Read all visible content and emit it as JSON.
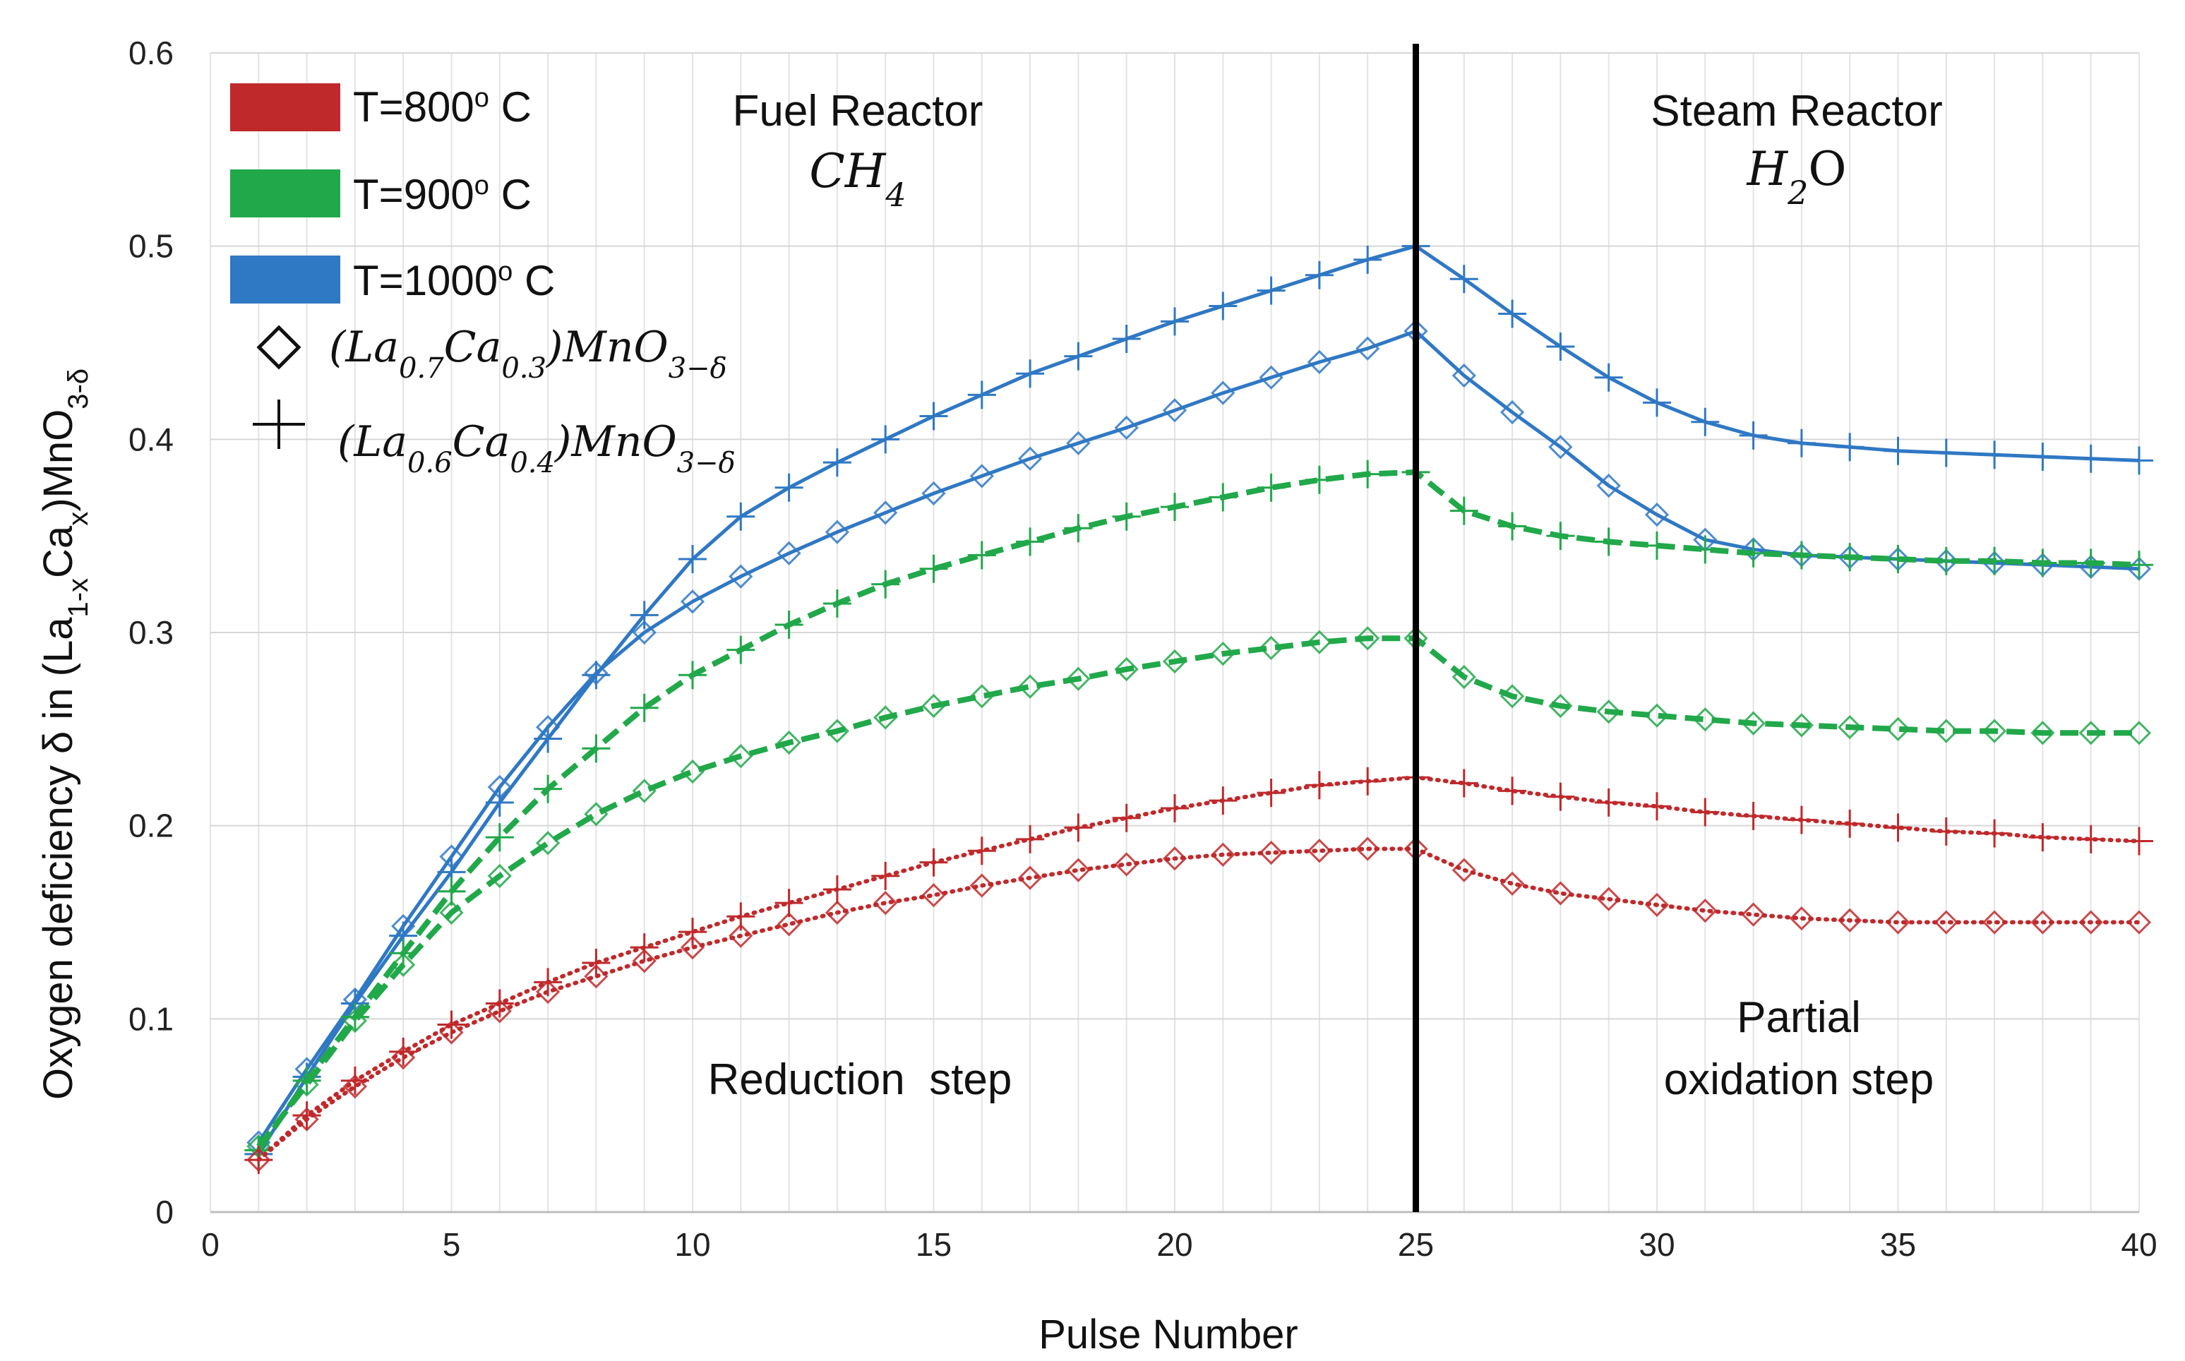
{
  "chart_data": {
    "type": "line",
    "title": "",
    "xlabel": "Pulse Number",
    "ylabel": {
      "prefix": "Oxygen deficiency δ in (La",
      "sub1": "1-x",
      "mid": "Ca",
      "sub2": "x",
      "suffix": ")MnO",
      "sub3": "3-δ"
    },
    "xlim": [
      0,
      40
    ],
    "ylim": [
      0,
      0.6
    ],
    "xticks": [
      "0",
      "5",
      "10",
      "15",
      "20",
      "25",
      "30",
      "35",
      "40"
    ],
    "yticks": [
      "0",
      "0.1",
      "0.2",
      "0.3",
      "0.4",
      "0.5",
      "0.6"
    ],
    "grid": true,
    "divider_x": 25,
    "colors": {
      "t800": "#c0292b",
      "t900": "#21a84a",
      "t1000": "#2f78c4",
      "divider": "#000000"
    },
    "annotations": {
      "fuel_reactor": {
        "title": "Fuel Reactor",
        "formula": "CH",
        "sub": "4"
      },
      "steam_reactor": {
        "title": "Steam Reactor",
        "formula": "H",
        "sub": "2",
        "tail": "O"
      },
      "reduction": "Reduction  step",
      "partial_line1": "Partial",
      "partial_line2": "oxidation step"
    },
    "legend": {
      "t800": {
        "label": "T=800",
        "sup": "o",
        "unit": " C"
      },
      "t900": {
        "label": "T=900",
        "sup": "o",
        "unit": " C"
      },
      "t1000": {
        "label": "T=1000",
        "sup": "o",
        "unit": " C"
      },
      "m03": {
        "open": "(La",
        "s1": "0.7",
        "mid": "Ca",
        "s2": "0.3",
        "close": ")MnO",
        "s3": "3−δ"
      },
      "m04": {
        "open": "(La",
        "s1": "0.6",
        "mid": "Ca",
        "s2": "0.4",
        "close": ")MnO",
        "s3": "3−δ"
      }
    },
    "x": [
      1,
      2,
      3,
      4,
      5,
      6,
      7,
      8,
      9,
      10,
      11,
      12,
      13,
      14,
      15,
      16,
      17,
      18,
      19,
      20,
      21,
      22,
      23,
      24,
      25,
      26,
      27,
      28,
      29,
      30,
      31,
      32,
      33,
      34,
      35,
      36,
      37,
      38,
      39,
      40
    ],
    "series": [
      {
        "name": "T=1000 C (La0.6Ca0.4)MnO3-δ",
        "color": "t1000",
        "style": "solid",
        "marker": "plus",
        "values": [
          0.03,
          0.07,
          0.108,
          0.143,
          0.176,
          0.212,
          0.245,
          0.278,
          0.309,
          0.338,
          0.36,
          0.375,
          0.388,
          0.4,
          0.412,
          0.423,
          0.434,
          0.443,
          0.452,
          0.461,
          0.469,
          0.477,
          0.485,
          0.493,
          0.5,
          0.483,
          0.465,
          0.448,
          0.432,
          0.419,
          0.409,
          0.402,
          0.398,
          0.396,
          0.394,
          0.393,
          0.392,
          0.391,
          0.39,
          0.389
        ]
      },
      {
        "name": "T=1000 C (La0.7Ca0.3)MnO3-δ",
        "color": "t1000",
        "style": "solid",
        "marker": "diamond",
        "values": [
          0.036,
          0.074,
          0.11,
          0.148,
          0.184,
          0.22,
          0.251,
          0.279,
          0.3,
          0.316,
          0.329,
          0.341,
          0.352,
          0.362,
          0.372,
          0.381,
          0.39,
          0.398,
          0.406,
          0.415,
          0.424,
          0.432,
          0.44,
          0.447,
          0.456,
          0.433,
          0.414,
          0.396,
          0.376,
          0.361,
          0.348,
          0.343,
          0.34,
          0.339,
          0.338,
          0.337,
          0.336,
          0.335,
          0.334,
          0.333
        ]
      },
      {
        "name": "T=900 C (La0.6Ca0.4)MnO3-δ",
        "color": "t900",
        "style": "dashed",
        "marker": "plus",
        "values": [
          0.032,
          0.068,
          0.101,
          0.134,
          0.166,
          0.194,
          0.219,
          0.24,
          0.261,
          0.278,
          0.291,
          0.304,
          0.315,
          0.325,
          0.333,
          0.34,
          0.347,
          0.354,
          0.36,
          0.365,
          0.37,
          0.375,
          0.379,
          0.382,
          0.383,
          0.363,
          0.355,
          0.35,
          0.347,
          0.345,
          0.343,
          0.341,
          0.34,
          0.339,
          0.338,
          0.337,
          0.337,
          0.336,
          0.336,
          0.335
        ]
      },
      {
        "name": "T=900 C (La0.7Ca0.3)MnO3-δ",
        "color": "t900",
        "style": "dashed",
        "marker": "diamond",
        "values": [
          0.034,
          0.066,
          0.099,
          0.128,
          0.155,
          0.174,
          0.191,
          0.206,
          0.218,
          0.228,
          0.236,
          0.243,
          0.249,
          0.256,
          0.262,
          0.267,
          0.272,
          0.276,
          0.281,
          0.285,
          0.289,
          0.292,
          0.295,
          0.297,
          0.297,
          0.277,
          0.267,
          0.262,
          0.259,
          0.257,
          0.255,
          0.253,
          0.252,
          0.251,
          0.25,
          0.249,
          0.249,
          0.248,
          0.248,
          0.248
        ]
      },
      {
        "name": "T=800 C (La0.6Ca0.4)MnO3-δ",
        "color": "t800",
        "style": "dotted",
        "marker": "plus",
        "values": [
          0.027,
          0.05,
          0.068,
          0.083,
          0.097,
          0.108,
          0.119,
          0.129,
          0.137,
          0.145,
          0.153,
          0.16,
          0.167,
          0.174,
          0.181,
          0.187,
          0.193,
          0.199,
          0.204,
          0.209,
          0.213,
          0.217,
          0.221,
          0.223,
          0.225,
          0.222,
          0.218,
          0.215,
          0.212,
          0.21,
          0.207,
          0.205,
          0.203,
          0.201,
          0.199,
          0.197,
          0.196,
          0.194,
          0.193,
          0.192
        ]
      },
      {
        "name": "T=800 C (La0.7Ca0.3)MnO3-δ",
        "color": "t800",
        "style": "dotted",
        "marker": "diamond",
        "values": [
          0.027,
          0.048,
          0.065,
          0.08,
          0.093,
          0.104,
          0.114,
          0.122,
          0.13,
          0.137,
          0.143,
          0.149,
          0.155,
          0.16,
          0.164,
          0.169,
          0.173,
          0.177,
          0.18,
          0.183,
          0.185,
          0.186,
          0.187,
          0.188,
          0.188,
          0.177,
          0.17,
          0.165,
          0.162,
          0.159,
          0.156,
          0.154,
          0.152,
          0.151,
          0.15,
          0.15,
          0.15,
          0.15,
          0.15,
          0.15
        ]
      }
    ]
  }
}
